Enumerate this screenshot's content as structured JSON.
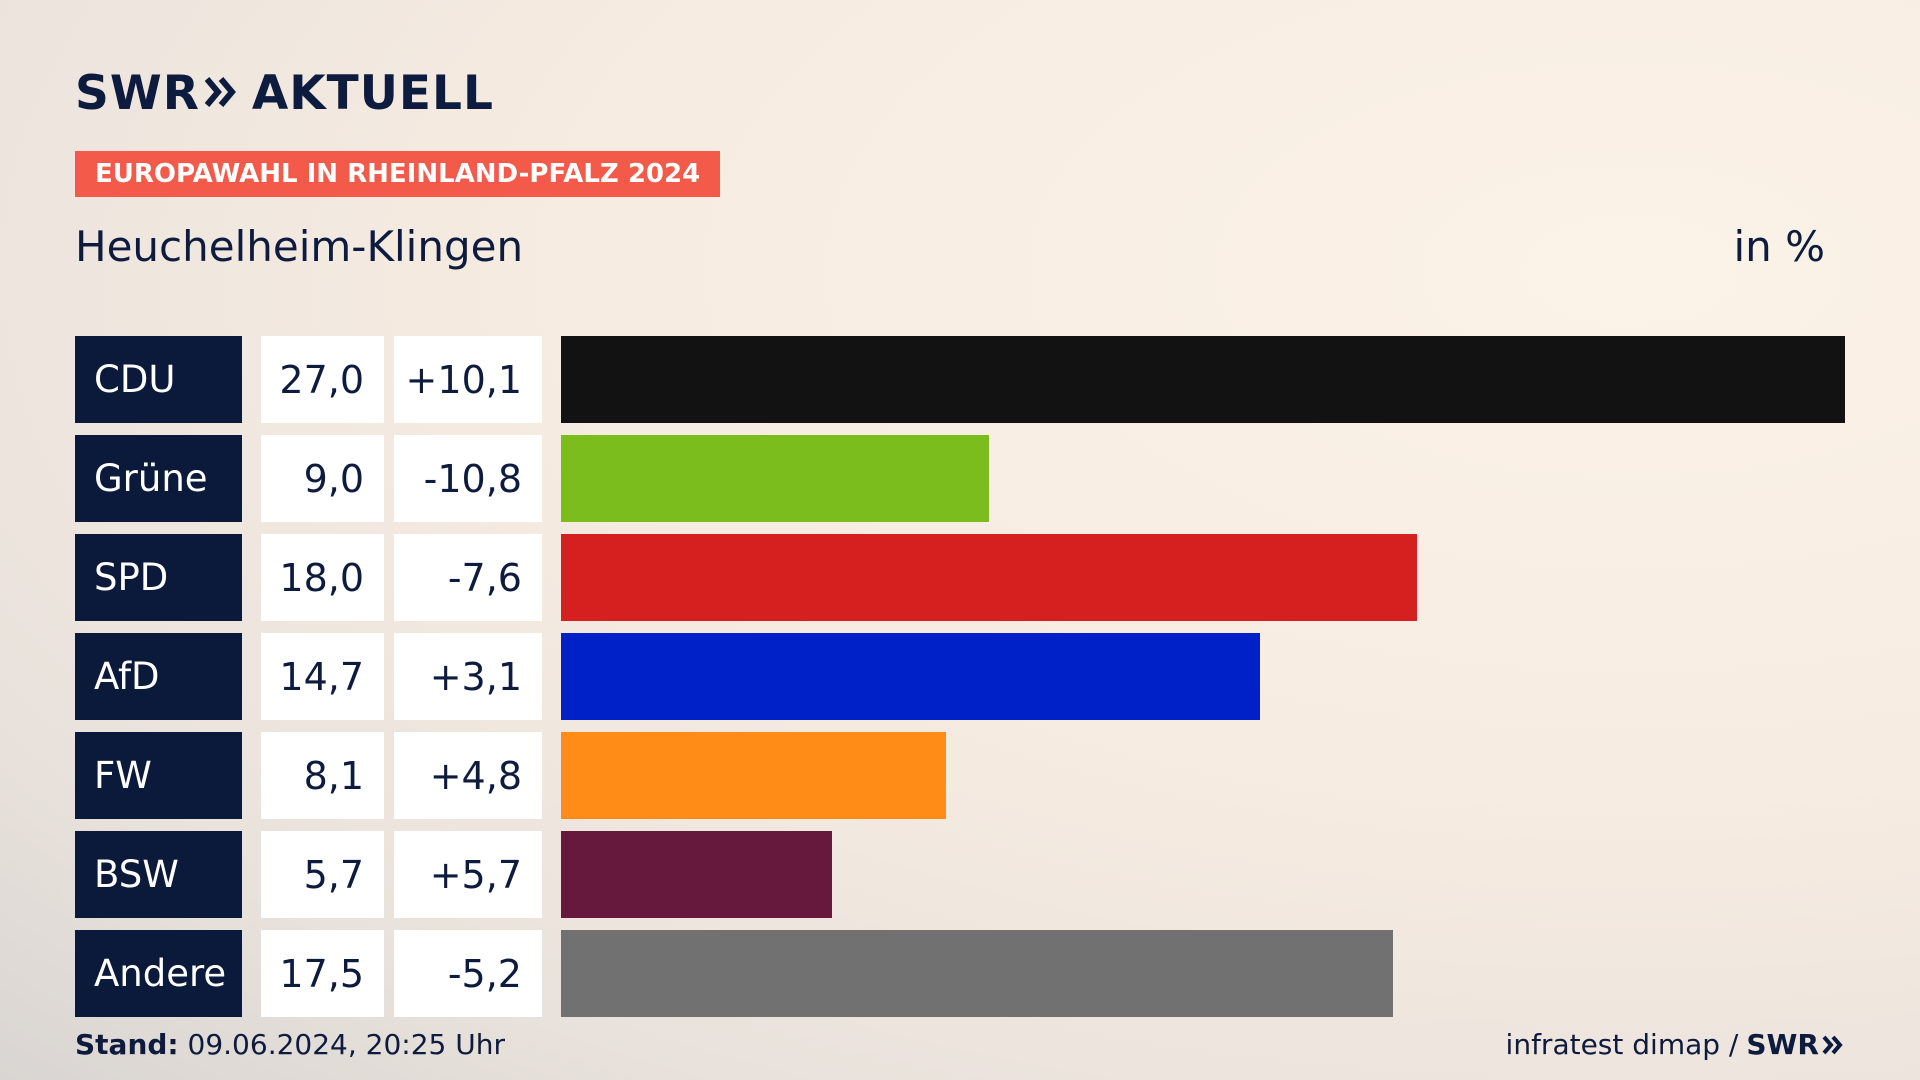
{
  "header": {
    "logo_text": "SWR",
    "logo_suffix": "AKTUELL",
    "badge": "EUROPAWAHL IN RHEINLAND-PFALZ 2024",
    "region": "Heuchelheim-Klingen",
    "unit": "in %"
  },
  "colors": {
    "CDU": "#121212",
    "Grüne": "#7bbd1c",
    "SPD": "#d61f1f",
    "AfD": "#0021c8",
    "FW": "#ff8c17",
    "BSW": "#66193d",
    "Andere": "#717171"
  },
  "chart_data": {
    "type": "bar",
    "orientation": "horizontal",
    "categories": [
      "CDU",
      "Grüne",
      "SPD",
      "AfD",
      "FW",
      "BSW",
      "Andere"
    ],
    "values": [
      27.0,
      9.0,
      18.0,
      14.7,
      8.1,
      5.7,
      17.5
    ],
    "value_labels": [
      "27,0",
      "9,0",
      "18,0",
      "14,7",
      "8,1",
      "5,7",
      "17,5"
    ],
    "diff_labels": [
      "+10,1",
      "-10,8",
      "-7,6",
      "+3,1",
      "+4,8",
      "+5,7",
      "-5,2"
    ],
    "xlim": [
      0,
      27.0
    ],
    "grid": false,
    "legend": "none"
  },
  "footer": {
    "stand_label": "Stand:",
    "stand_value": "09.06.2024, 20:25 Uhr",
    "source": "infratest dimap /",
    "source_brand": "SWR"
  }
}
